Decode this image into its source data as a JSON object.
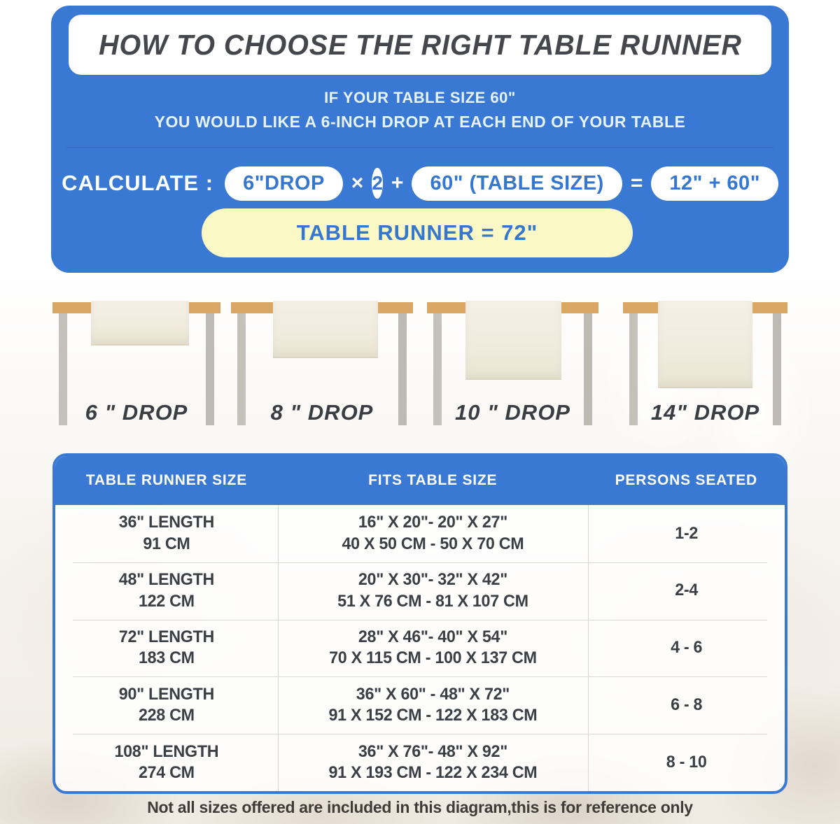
{
  "page": {
    "title": "HOW TO CHOOSE THE RIGHT TABLE RUNNER",
    "subtitle_line1": "IF YOUR TABLE SIZE 60\"",
    "subtitle_line2": "YOU WOULD LIKE A 6-INCH DROP AT EACH END OF YOUR TABLE",
    "footer_note": "Not all sizes offered are included in this diagram,this is for reference only"
  },
  "calculation": {
    "label": "CALCULATE :",
    "drop_pill": "6\"DROP",
    "times_sign": "×",
    "multiplier": "2",
    "plus_sign": "+",
    "table_size_pill": "60\" (TABLE SIZE)",
    "equals_sign": "=",
    "sum_pill": "12\" + 60\"",
    "result": "TABLE RUNNER = 72\""
  },
  "drop_examples": [
    {
      "label": "6 \" DROP"
    },
    {
      "label": "8 \" DROP"
    },
    {
      "label": "10 \" DROP"
    },
    {
      "label": "14\" DROP"
    }
  ],
  "size_table": {
    "headers": [
      "TABLE RUNNER SIZE",
      "FITS TABLE SIZE",
      "PERSONS SEATED"
    ],
    "rows": [
      {
        "runner_in": "36\" LENGTH",
        "runner_cm": "91 CM",
        "fits_in": "16\" X 20\"- 20\" X 27\"",
        "fits_cm": "40 X 50 CM - 50 X 70 CM",
        "persons": "1-2"
      },
      {
        "runner_in": "48\" LENGTH",
        "runner_cm": "122 CM",
        "fits_in": "20\" X 30\"- 32\" X 42\"",
        "fits_cm": "51 X 76 CM - 81 X 107 CM",
        "persons": "2-4"
      },
      {
        "runner_in": "72\" LENGTH",
        "runner_cm": "183 CM",
        "fits_in": "28\" X 46\"- 40\" X 54\"",
        "fits_cm": "70 X 115 CM - 100 X 137 CM",
        "persons": "4 - 6"
      },
      {
        "runner_in": "90\" LENGTH",
        "runner_cm": "228 CM",
        "fits_in": "36\" X 60\" - 48\" X 72\"",
        "fits_cm": "91 X 152 CM - 122 X 183 CM",
        "persons": "6 - 8"
      },
      {
        "runner_in": "108\" LENGTH",
        "runner_cm": "274 CM",
        "fits_in": "36\" X 76\"- 48\" X 92\"",
        "fits_cm": "91 X 193 CM - 122 X 234 CM",
        "persons": "8 - 10"
      }
    ]
  },
  "colors": {
    "accent_blue": "#3A79D3",
    "pill_text_blue": "#3577CE",
    "result_yellow": "#FAF8C5",
    "wood_tan": "#D9A763",
    "runner_cream": "#F0EBDD",
    "leg_gray": "#C4C0BA",
    "text_dark": "#3B3F44"
  }
}
